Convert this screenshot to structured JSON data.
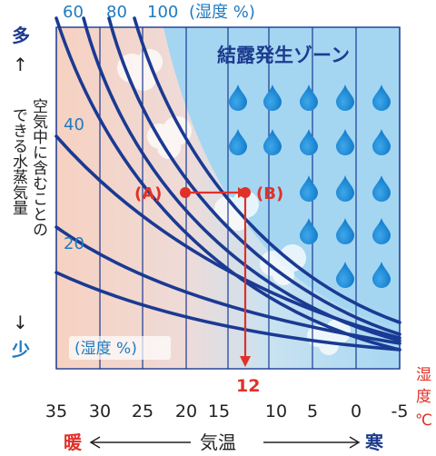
{
  "top_axis": {
    "labels": [
      "60",
      "80",
      "100"
    ],
    "unit": "(湿度 %)"
  },
  "y_axis": {
    "top_label": "多",
    "bottom_label": "少",
    "arrow_up": "↑",
    "arrow_down": "↓",
    "title_line1": "空気中に含むことの",
    "title_line2": "できる水蒸気量",
    "labels": [
      "40",
      "20"
    ]
  },
  "zone_title": "結露発生ゾーン",
  "humidity_unit": "(湿度 %)",
  "points": {
    "a_label": "(A)",
    "b_label": "(B)",
    "dew_point_value": "12"
  },
  "x_axis": {
    "tick_labels": [
      "35",
      "30",
      "25",
      "20",
      "15",
      "10",
      "5",
      "0",
      "-5"
    ],
    "warm_label": "暖",
    "cold_label": "寒",
    "title": "気温",
    "unit_label": [
      "湿",
      "度",
      "℃"
    ]
  },
  "colors": {
    "accent_blue": "#1f7bc0",
    "navy": "#1d3b8f",
    "red": "#e03129",
    "curve": "#1a3a93",
    "warm_bg": "#f6cfbf",
    "cool_bg": "#9fd3f0"
  }
}
